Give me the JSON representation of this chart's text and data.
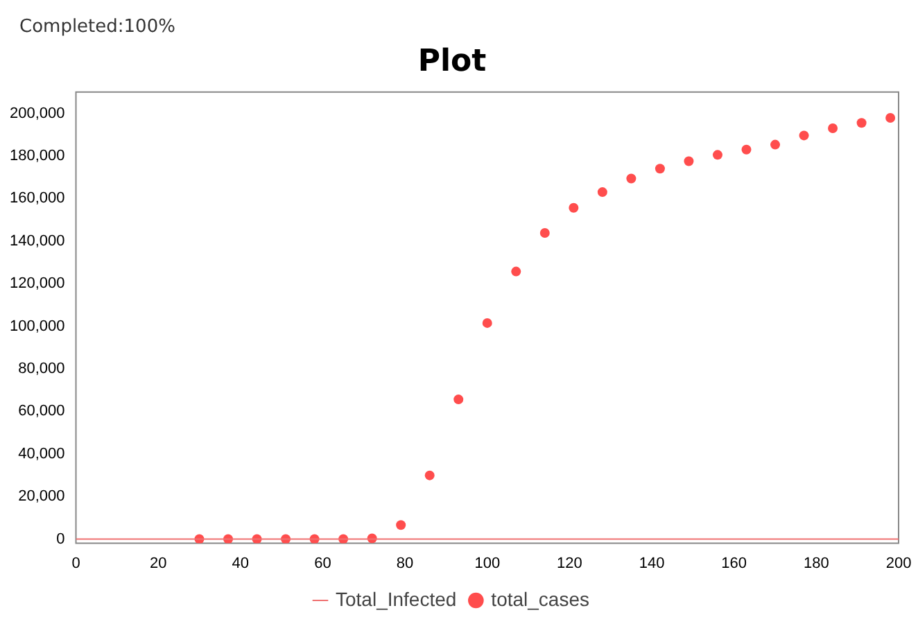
{
  "chart_data": {
    "type": "scatter",
    "title": "Plot",
    "annotations": [
      "Completed:100%"
    ],
    "xlim": [
      0,
      200
    ],
    "xticks": [
      0,
      20,
      40,
      60,
      80,
      100,
      120,
      140,
      160,
      180,
      200
    ],
    "ylim": [
      -2000,
      210000
    ],
    "yticks": [
      0,
      {
        "value": 20000,
        "label": "20,000"
      },
      {
        "value": 40000,
        "label": "40,000"
      },
      {
        "value": 60000,
        "label": "60,000"
      },
      {
        "value": 80000,
        "label": "80,000"
      },
      {
        "value": 100000,
        "label": "100,000"
      },
      {
        "value": 120000,
        "label": "120,000"
      },
      {
        "value": 140000,
        "label": "140,000"
      },
      {
        "value": 160000,
        "label": "160,000"
      },
      {
        "value": 180000,
        "label": "180,000"
      },
      {
        "value": 200000,
        "label": "200,000"
      }
    ],
    "grid": false,
    "legend": "bottom",
    "series": [
      {
        "name": "Total_Infected",
        "type": "line",
        "color": "#f07070",
        "marker": "none",
        "x": [
          0,
          200
        ],
        "values": [
          0,
          0
        ]
      },
      {
        "name": "total_cases",
        "color": "#ff4d4d",
        "marker": "circle",
        "x": [
          30,
          37,
          44,
          51,
          58,
          65,
          72,
          79,
          86,
          93,
          100,
          107,
          114,
          121,
          128,
          135,
          142,
          149,
          156,
          163,
          170,
          177,
          184,
          191,
          198
        ],
        "values": [
          0,
          0,
          0,
          0,
          0,
          0,
          300,
          6600,
          29900,
          65600,
          101500,
          125700,
          143800,
          155600,
          163000,
          169400,
          174000,
          177500,
          180500,
          183000,
          185300,
          189600,
          193000,
          195500,
          197900
        ]
      }
    ]
  }
}
